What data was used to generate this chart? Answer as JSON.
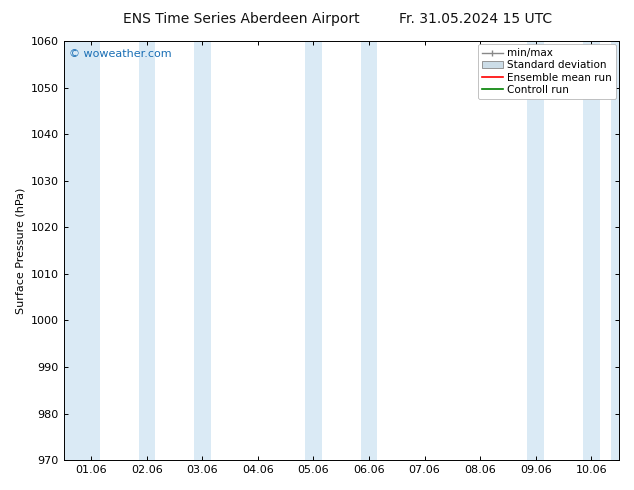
{
  "title_left": "ENS Time Series Aberdeen Airport",
  "title_right": "Fr. 31.05.2024 15 UTC",
  "ylabel": "Surface Pressure (hPa)",
  "ylim": [
    970,
    1060
  ],
  "yticks": [
    970,
    980,
    990,
    1000,
    1010,
    1020,
    1030,
    1040,
    1050,
    1060
  ],
  "xlabel_ticks": [
    "01.06",
    "02.06",
    "03.06",
    "04.06",
    "05.06",
    "06.06",
    "07.06",
    "08.06",
    "09.06",
    "10.06"
  ],
  "x_positions": [
    0,
    1,
    2,
    3,
    4,
    5,
    6,
    7,
    8,
    9
  ],
  "xlim": [
    -0.5,
    9.5
  ],
  "shaded_bands": [
    {
      "x_start": -0.5,
      "x_end": 0.15,
      "color": "#daeaf5"
    },
    {
      "x_start": 0.85,
      "x_end": 1.15,
      "color": "#daeaf5"
    },
    {
      "x_start": 1.85,
      "x_end": 2.15,
      "color": "#daeaf5"
    },
    {
      "x_start": 3.85,
      "x_end": 4.15,
      "color": "#daeaf5"
    },
    {
      "x_start": 4.85,
      "x_end": 5.15,
      "color": "#daeaf5"
    },
    {
      "x_start": 7.85,
      "x_end": 8.15,
      "color": "#daeaf5"
    },
    {
      "x_start": 8.85,
      "x_end": 9.15,
      "color": "#daeaf5"
    },
    {
      "x_start": 9.35,
      "x_end": 9.5,
      "color": "#daeaf5"
    }
  ],
  "watermark": "© woweather.com",
  "watermark_color": "#1a6fb5",
  "legend_labels": [
    "min/max",
    "Standard deviation",
    "Ensemble mean run",
    "Controll run"
  ],
  "legend_line_colors": [
    "#888888",
    "#bbccdd",
    "#ff0000",
    "#008000"
  ],
  "bg_color": "#ffffff",
  "plot_bg_color": "#ffffff",
  "title_fontsize": 10,
  "axis_fontsize": 8,
  "legend_fontsize": 7.5
}
